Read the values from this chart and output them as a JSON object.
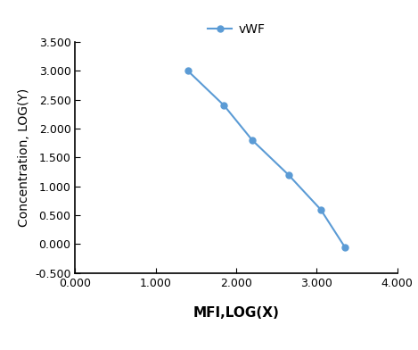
{
  "x": [
    1.4,
    1.85,
    2.2,
    2.65,
    3.05,
    3.35
  ],
  "y": [
    3.0,
    2.4,
    1.8,
    1.2,
    0.6,
    -0.05
  ],
  "line_color": "#5B9BD5",
  "marker": "o",
  "marker_size": 5,
  "legend_label": "vWF",
  "xlabel": "MFI,LOG(X)",
  "ylabel": "Concentration, LOG(Y)",
  "xlim": [
    0.0,
    4.0
  ],
  "ylim": [
    -0.5,
    3.5
  ],
  "xticks": [
    0.0,
    1.0,
    2.0,
    3.0,
    4.0
  ],
  "yticks": [
    -0.5,
    0.0,
    0.5,
    1.0,
    1.5,
    2.0,
    2.5,
    3.0,
    3.5
  ],
  "xlabel_fontsize": 11,
  "ylabel_fontsize": 10,
  "legend_fontsize": 10,
  "tick_fontsize": 9,
  "background_color": "#ffffff"
}
